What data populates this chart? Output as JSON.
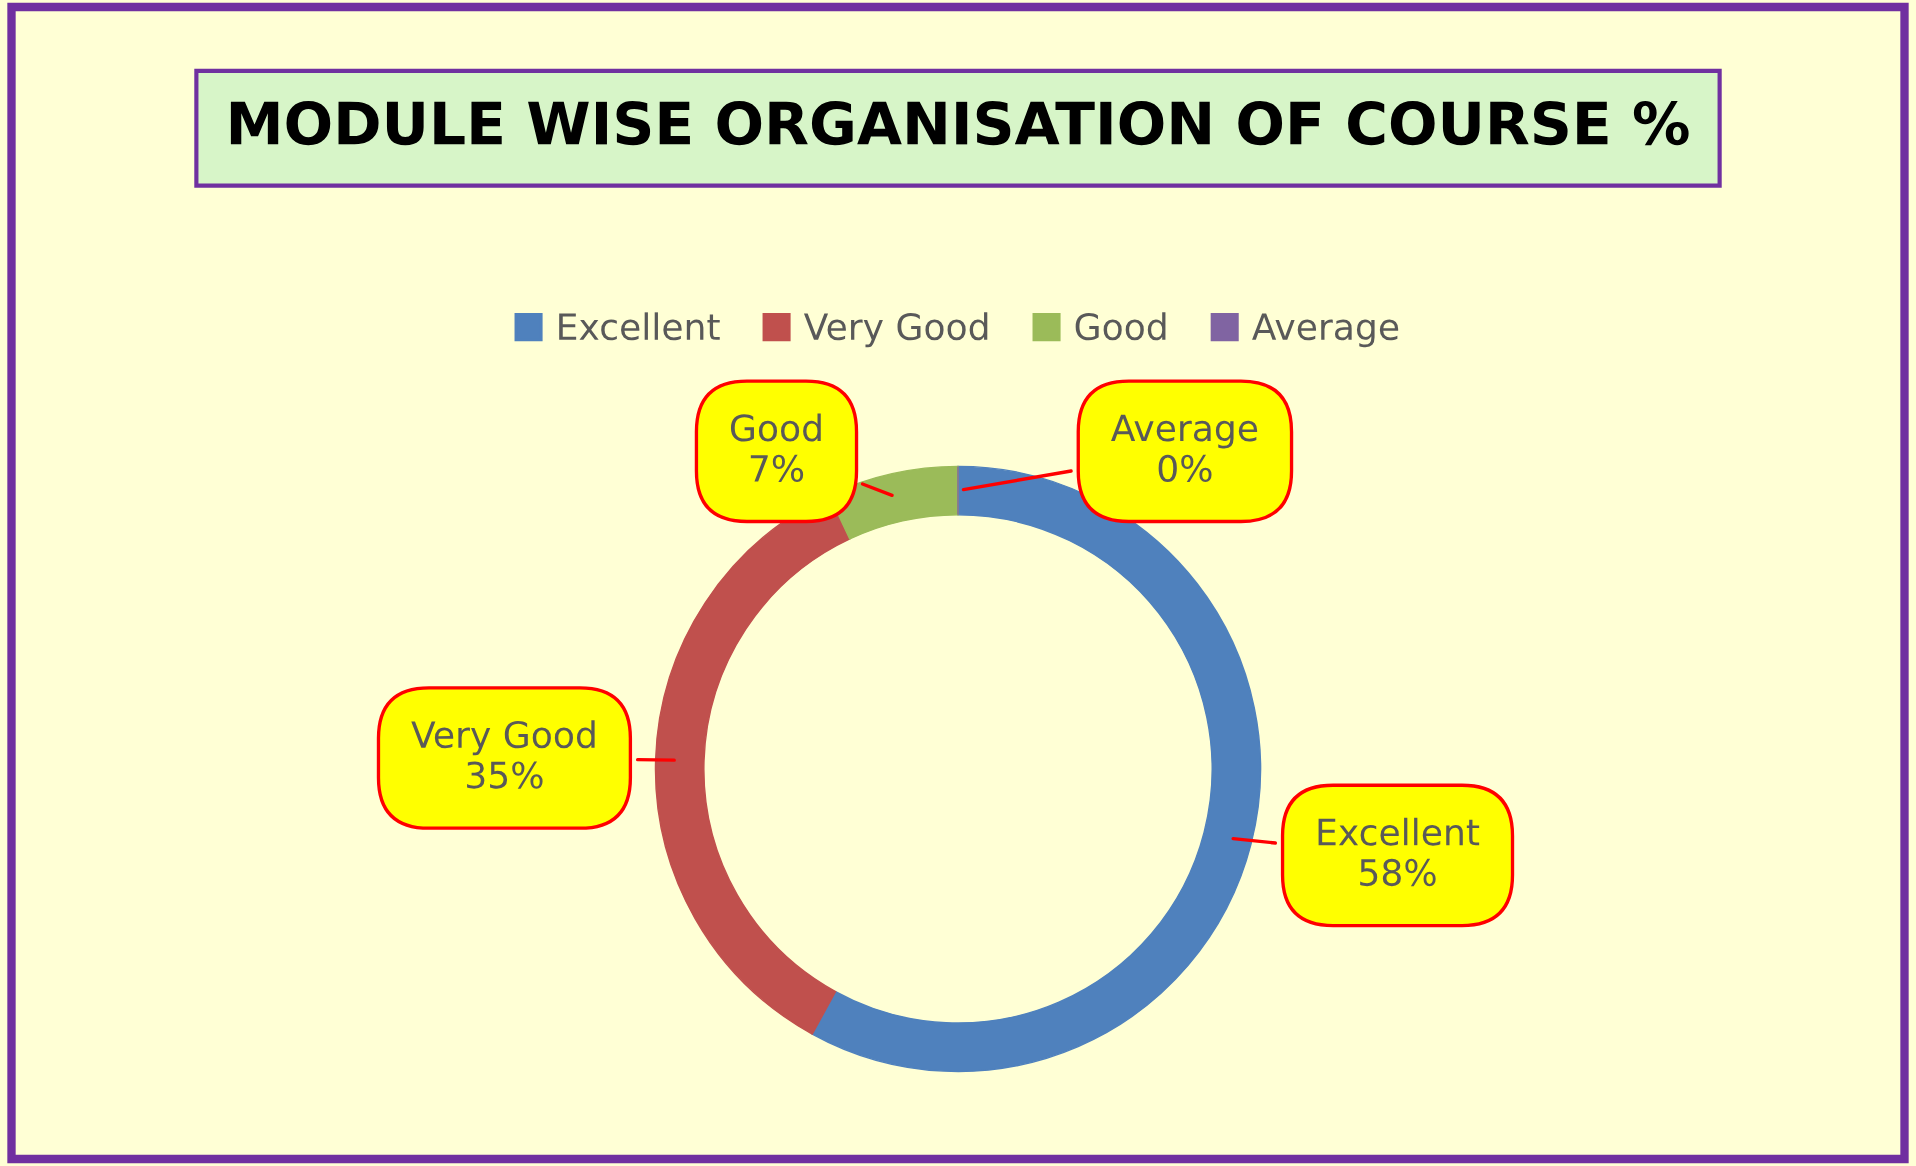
{
  "chart_data": {
    "type": "donut",
    "title": "MODULE WISE ORGANISATION OF COURSE %",
    "categories": [
      "Excellent",
      "Very Good",
      "Good",
      "Average"
    ],
    "values": [
      58,
      35,
      7,
      0
    ],
    "colors": [
      "#4f81bd",
      "#c0504d",
      "#9bbb59",
      "#8064a2"
    ],
    "value_labels": [
      "58%",
      "35%",
      "7%",
      "0%"
    ],
    "legend": "top"
  }
}
